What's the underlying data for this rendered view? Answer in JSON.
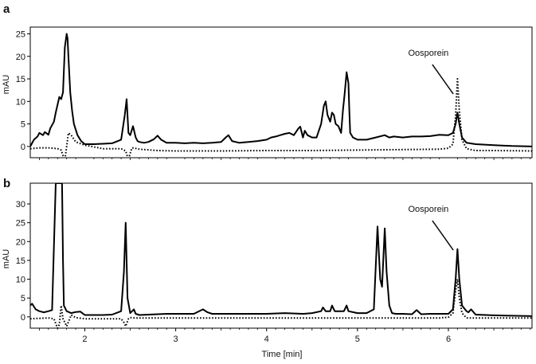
{
  "chart_data": [
    {
      "type": "line",
      "panel": "a",
      "ylabel": "mAU",
      "xlim": [
        1.4,
        6.92
      ],
      "ylim": [
        -2.5,
        26.5
      ],
      "y_ticks": [
        0,
        5,
        10,
        15,
        20,
        25
      ],
      "x_ticks": [],
      "series": [
        {
          "style": "solid",
          "x": [
            1.4,
            1.44,
            1.48,
            1.5,
            1.54,
            1.56,
            1.6,
            1.62,
            1.66,
            1.68,
            1.72,
            1.74,
            1.76,
            1.78,
            1.8,
            1.81,
            1.82,
            1.84,
            1.86,
            1.88,
            1.92,
            1.96,
            2.0,
            2.1,
            2.2,
            2.3,
            2.4,
            2.44,
            2.46,
            2.48,
            2.5,
            2.53,
            2.56,
            2.58,
            2.6,
            2.65,
            2.7,
            2.76,
            2.8,
            2.84,
            2.9,
            3.0,
            3.1,
            3.2,
            3.3,
            3.4,
            3.5,
            3.55,
            3.58,
            3.62,
            3.7,
            3.8,
            3.9,
            4.0,
            4.05,
            4.1,
            4.15,
            4.2,
            4.25,
            4.3,
            4.35,
            4.37,
            4.4,
            4.42,
            4.45,
            4.5,
            4.55,
            4.6,
            4.63,
            4.65,
            4.67,
            4.7,
            4.72,
            4.74,
            4.76,
            4.79,
            4.82,
            4.84,
            4.86,
            4.88,
            4.9,
            4.91,
            4.92,
            4.95,
            5.0,
            5.1,
            5.2,
            5.3,
            5.35,
            5.4,
            5.5,
            5.6,
            5.7,
            5.8,
            5.9,
            6.0,
            6.05,
            6.08,
            6.1,
            6.12,
            6.15,
            6.2,
            6.3,
            6.5,
            6.7,
            6.92
          ],
          "y": [
            0,
            1.5,
            2.2,
            3,
            2.5,
            3.2,
            2.6,
            4,
            5.5,
            7.5,
            11,
            10.5,
            12,
            22,
            25,
            24,
            20,
            12,
            8,
            5,
            2.5,
            1.2,
            0.5,
            0.5,
            0.6,
            0.7,
            1.5,
            7,
            10.5,
            3,
            2.5,
            4.5,
            2,
            1.2,
            1,
            0.8,
            1,
            1.6,
            2.4,
            1.5,
            0.8,
            0.8,
            0.7,
            0.8,
            0.7,
            0.8,
            1,
            2,
            2.5,
            1.2,
            0.8,
            1,
            1.2,
            1.5,
            2,
            2.2,
            2.5,
            2.8,
            3,
            2.5,
            4,
            4.4,
            2,
            3.5,
            2.5,
            2,
            2,
            5,
            9,
            10,
            7,
            5.5,
            7.5,
            7,
            5,
            4.5,
            3,
            8,
            12,
            16.5,
            14,
            8,
            3,
            2,
            1.5,
            1.5,
            2,
            2.5,
            2,
            2.2,
            2,
            2.2,
            2.2,
            2.3,
            2.6,
            2.5,
            3,
            5,
            7.5,
            5,
            2,
            0.8,
            0.5,
            0.3,
            0.1,
            0
          ]
        },
        {
          "style": "dotted",
          "x": [
            1.4,
            1.5,
            1.6,
            1.65,
            1.7,
            1.74,
            1.76,
            1.78,
            1.8,
            1.82,
            1.85,
            1.9,
            2.0,
            2.2,
            2.4,
            2.45,
            2.48,
            2.5,
            2.52,
            2.55,
            2.6,
            2.8,
            3.0,
            3.5,
            4.0,
            4.5,
            5.0,
            5.5,
            5.9,
            6.0,
            6.05,
            6.08,
            6.1,
            6.12,
            6.15,
            6.2,
            6.3,
            6.5,
            6.92
          ],
          "y": [
            -0.5,
            -0.3,
            -0.3,
            -0.4,
            -0.5,
            -0.8,
            -2,
            -3,
            0,
            3,
            2.5,
            1,
            0.3,
            -0.5,
            -0.5,
            -1,
            -3,
            -1.5,
            -0.3,
            -0.4,
            -0.6,
            -0.9,
            -1,
            -1,
            -0.9,
            -0.9,
            -0.8,
            -0.7,
            -0.6,
            -0.4,
            0.5,
            7,
            15,
            8,
            1.5,
            -0.5,
            -0.9,
            -0.9,
            -1
          ]
        }
      ],
      "annotations": [
        {
          "text": "Oosporein",
          "points_to_x": 6.08
        }
      ]
    },
    {
      "type": "line",
      "panel": "b",
      "ylabel": "mAU",
      "xlabel": "Time [min]",
      "xlim": [
        1.4,
        6.92
      ],
      "ylim": [
        -3,
        35.5
      ],
      "y_ticks": [
        0,
        5,
        10,
        15,
        20,
        25,
        30
      ],
      "x_ticks": [
        2,
        3,
        4,
        5,
        6
      ],
      "series": [
        {
          "style": "solid",
          "x": [
            1.4,
            1.42,
            1.46,
            1.5,
            1.55,
            1.6,
            1.64,
            1.68,
            1.7,
            1.72,
            1.75,
            1.76,
            1.77,
            1.8,
            1.85,
            1.9,
            1.95,
            2.0,
            2.1,
            2.2,
            2.3,
            2.4,
            2.43,
            2.45,
            2.47,
            2.5,
            2.54,
            2.56,
            2.6,
            2.7,
            2.8,
            2.9,
            3.0,
            3.2,
            3.3,
            3.35,
            3.4,
            3.6,
            3.8,
            4.0,
            4.2,
            4.4,
            4.5,
            4.6,
            4.62,
            4.65,
            4.7,
            4.72,
            4.75,
            4.8,
            4.85,
            4.88,
            4.9,
            5.0,
            5.1,
            5.18,
            5.22,
            5.25,
            5.27,
            5.3,
            5.32,
            5.35,
            5.38,
            5.42,
            5.5,
            5.6,
            5.65,
            5.7,
            5.8,
            5.9,
            6.0,
            6.05,
            6.08,
            6.1,
            6.12,
            6.15,
            6.2,
            6.22,
            6.25,
            6.3,
            6.5,
            6.7,
            6.92
          ],
          "y": [
            3,
            3.5,
            2,
            1.5,
            1.2,
            1.5,
            1.8,
            35.5,
            35.5,
            35.5,
            35.5,
            15,
            3,
            1.5,
            1,
            1.3,
            1.4,
            0.5,
            0.5,
            0.5,
            0.6,
            1.5,
            12,
            25,
            5,
            1,
            2,
            0.8,
            0.5,
            0.6,
            0.7,
            0.8,
            0.8,
            0.8,
            2,
            1.2,
            0.8,
            0.8,
            0.8,
            0.8,
            1,
            0.8,
            1,
            1.5,
            2.5,
            1.5,
            1.5,
            3,
            1.5,
            1.5,
            1.5,
            3,
            1.5,
            1,
            1,
            2,
            24,
            10,
            8,
            23.5,
            12,
            3,
            1,
            0.8,
            0.8,
            0.7,
            1.8,
            0.7,
            0.8,
            0.8,
            0.8,
            2,
            10,
            18,
            10,
            3,
            1.5,
            1.2,
            2,
            0.6,
            0.4,
            0.3,
            0.2
          ]
        },
        {
          "style": "dotted",
          "x": [
            1.4,
            1.5,
            1.6,
            1.66,
            1.7,
            1.72,
            1.74,
            1.76,
            1.8,
            1.85,
            1.9,
            2.0,
            2.2,
            2.4,
            2.43,
            2.45,
            2.48,
            2.5,
            2.55,
            2.6,
            3.0,
            3.5,
            4.0,
            4.5,
            5.0,
            5.5,
            5.9,
            6.0,
            6.05,
            6.08,
            6.1,
            6.12,
            6.15,
            6.2,
            6.3,
            6.5,
            6.92
          ],
          "y": [
            -0.5,
            -0.4,
            -0.3,
            -0.5,
            -3,
            -2,
            3,
            -0.5,
            -2.5,
            0.5,
            -0.2,
            -0.5,
            -0.5,
            -0.5,
            -1.5,
            -2.5,
            -0.5,
            -0.2,
            -0.3,
            -0.3,
            -0.3,
            -0.3,
            -0.3,
            -0.3,
            -0.3,
            -0.3,
            -0.3,
            -0.1,
            1,
            7,
            10,
            5,
            1,
            -0.3,
            -0.3,
            -0.3,
            -0.3
          ]
        }
      ],
      "annotations": [
        {
          "text": "Oosporein",
          "points_to_x": 6.08
        }
      ]
    }
  ]
}
